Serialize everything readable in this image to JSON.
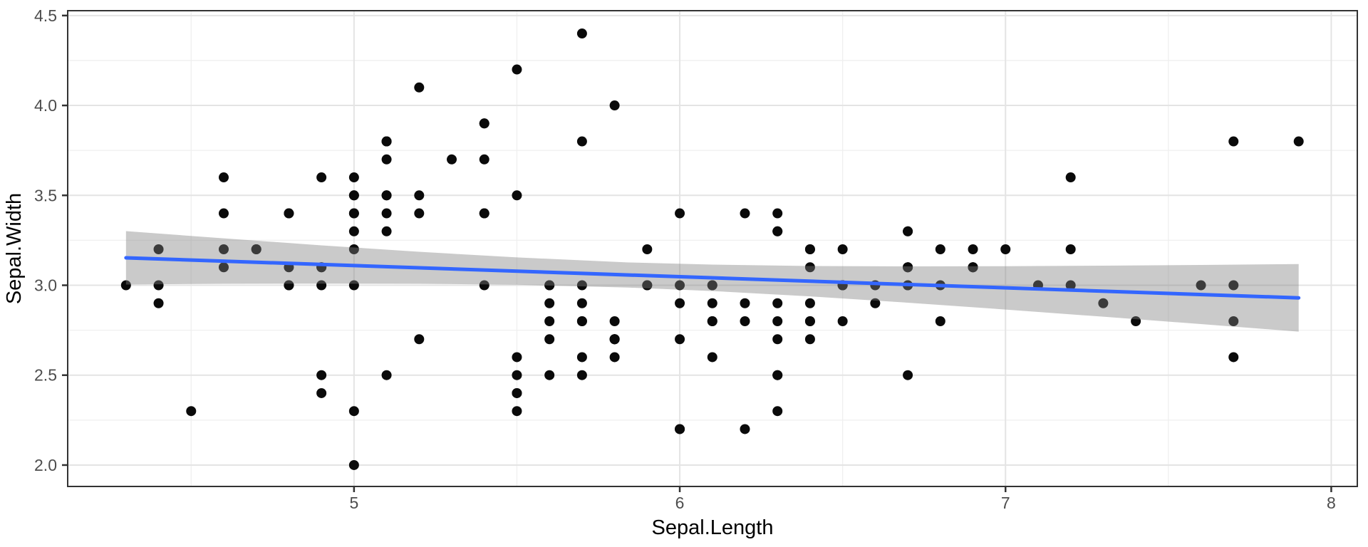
{
  "chart_data": {
    "type": "scatter",
    "title": "",
    "xlabel": "Sepal.Length",
    "ylabel": "Sepal.Width",
    "xlim": [
      4.121,
      8.08
    ],
    "ylim": [
      1.881,
      4.527
    ],
    "grid": "on",
    "legend": "none",
    "x_ticks": [
      {
        "v": 5,
        "label": "5"
      },
      {
        "v": 6,
        "label": "6"
      },
      {
        "v": 7,
        "label": "7"
      },
      {
        "v": 8,
        "label": "8"
      }
    ],
    "y_ticks": [
      {
        "v": 2.0,
        "label": "2.0"
      },
      {
        "v": 2.5,
        "label": "2.5"
      },
      {
        "v": 3.0,
        "label": "3.0"
      },
      {
        "v": 3.5,
        "label": "3.5"
      },
      {
        "v": 4.0,
        "label": "4.0"
      },
      {
        "v": 4.5,
        "label": "4.5"
      }
    ],
    "x_minor_ticks": [
      4.5,
      5.5,
      6.5,
      7.5
    ],
    "y_minor_ticks": [
      2.25,
      2.75,
      3.25,
      3.75,
      4.25
    ],
    "points": [
      [
        5.1,
        3.5
      ],
      [
        4.9,
        3.0
      ],
      [
        4.7,
        3.2
      ],
      [
        4.6,
        3.1
      ],
      [
        5.0,
        3.6
      ],
      [
        5.4,
        3.9
      ],
      [
        4.6,
        3.4
      ],
      [
        5.0,
        3.4
      ],
      [
        4.4,
        2.9
      ],
      [
        4.9,
        3.1
      ],
      [
        5.4,
        3.7
      ],
      [
        4.8,
        3.4
      ],
      [
        4.8,
        3.0
      ],
      [
        4.3,
        3.0
      ],
      [
        5.8,
        4.0
      ],
      [
        5.7,
        4.4
      ],
      [
        5.4,
        3.9
      ],
      [
        5.1,
        3.5
      ],
      [
        5.7,
        3.8
      ],
      [
        5.1,
        3.8
      ],
      [
        5.4,
        3.4
      ],
      [
        5.1,
        3.7
      ],
      [
        4.6,
        3.6
      ],
      [
        5.1,
        3.3
      ],
      [
        4.8,
        3.4
      ],
      [
        5.0,
        3.0
      ],
      [
        5.0,
        3.4
      ],
      [
        5.2,
        3.5
      ],
      [
        5.2,
        3.4
      ],
      [
        4.7,
        3.2
      ],
      [
        4.8,
        3.1
      ],
      [
        5.4,
        3.4
      ],
      [
        5.2,
        4.1
      ],
      [
        5.5,
        4.2
      ],
      [
        4.9,
        3.1
      ],
      [
        5.0,
        3.2
      ],
      [
        5.5,
        3.5
      ],
      [
        4.9,
        3.6
      ],
      [
        4.4,
        3.0
      ],
      [
        5.1,
        3.4
      ],
      [
        5.0,
        3.5
      ],
      [
        4.5,
        2.3
      ],
      [
        4.4,
        3.2
      ],
      [
        5.0,
        3.5
      ],
      [
        5.1,
        3.8
      ],
      [
        4.8,
        3.0
      ],
      [
        5.1,
        3.8
      ],
      [
        4.6,
        3.2
      ],
      [
        5.3,
        3.7
      ],
      [
        5.0,
        3.3
      ],
      [
        7.0,
        3.2
      ],
      [
        6.4,
        3.2
      ],
      [
        6.9,
        3.1
      ],
      [
        5.5,
        2.3
      ],
      [
        6.5,
        2.8
      ],
      [
        5.7,
        2.8
      ],
      [
        6.3,
        3.3
      ],
      [
        4.9,
        2.4
      ],
      [
        6.6,
        2.9
      ],
      [
        5.2,
        2.7
      ],
      [
        5.0,
        2.0
      ],
      [
        5.9,
        3.0
      ],
      [
        6.0,
        2.2
      ],
      [
        6.1,
        2.9
      ],
      [
        5.6,
        2.9
      ],
      [
        6.7,
        3.1
      ],
      [
        5.6,
        3.0
      ],
      [
        5.8,
        2.7
      ],
      [
        6.2,
        2.2
      ],
      [
        5.6,
        2.5
      ],
      [
        5.9,
        3.2
      ],
      [
        6.1,
        2.8
      ],
      [
        6.3,
        2.5
      ],
      [
        6.1,
        2.8
      ],
      [
        6.4,
        2.9
      ],
      [
        6.6,
        3.0
      ],
      [
        6.8,
        2.8
      ],
      [
        6.7,
        3.0
      ],
      [
        6.0,
        2.9
      ],
      [
        5.7,
        2.6
      ],
      [
        5.5,
        2.4
      ],
      [
        5.5,
        2.4
      ],
      [
        5.8,
        2.7
      ],
      [
        6.0,
        2.7
      ],
      [
        5.4,
        3.0
      ],
      [
        6.0,
        3.4
      ],
      [
        6.7,
        3.1
      ],
      [
        6.3,
        2.3
      ],
      [
        5.6,
        3.0
      ],
      [
        5.5,
        2.5
      ],
      [
        5.5,
        2.6
      ],
      [
        6.1,
        3.0
      ],
      [
        5.8,
        2.6
      ],
      [
        5.0,
        2.3
      ],
      [
        5.6,
        2.7
      ],
      [
        5.7,
        3.0
      ],
      [
        5.7,
        2.9
      ],
      [
        6.2,
        2.9
      ],
      [
        5.1,
        2.5
      ],
      [
        5.7,
        2.8
      ],
      [
        6.3,
        3.3
      ],
      [
        5.8,
        2.7
      ],
      [
        7.1,
        3.0
      ],
      [
        6.3,
        2.9
      ],
      [
        6.5,
        3.0
      ],
      [
        7.6,
        3.0
      ],
      [
        4.9,
        2.5
      ],
      [
        7.3,
        2.9
      ],
      [
        6.7,
        2.5
      ],
      [
        7.2,
        3.6
      ],
      [
        6.5,
        3.2
      ],
      [
        6.4,
        2.7
      ],
      [
        6.8,
        3.0
      ],
      [
        5.7,
        2.5
      ],
      [
        5.8,
        2.8
      ],
      [
        6.4,
        3.2
      ],
      [
        6.5,
        3.0
      ],
      [
        7.7,
        3.8
      ],
      [
        7.7,
        2.6
      ],
      [
        6.0,
        2.2
      ],
      [
        6.9,
        3.2
      ],
      [
        5.6,
        2.8
      ],
      [
        7.7,
        2.8
      ],
      [
        6.3,
        2.7
      ],
      [
        6.7,
        3.3
      ],
      [
        7.2,
        3.2
      ],
      [
        6.2,
        2.8
      ],
      [
        6.1,
        3.0
      ],
      [
        6.4,
        2.8
      ],
      [
        7.2,
        3.0
      ],
      [
        7.4,
        2.8
      ],
      [
        7.9,
        3.8
      ],
      [
        6.4,
        2.8
      ],
      [
        6.3,
        2.8
      ],
      [
        6.1,
        2.6
      ],
      [
        7.7,
        3.0
      ],
      [
        6.3,
        3.4
      ],
      [
        6.4,
        3.1
      ],
      [
        6.0,
        3.0
      ],
      [
        6.9,
        3.1
      ],
      [
        6.7,
        3.1
      ],
      [
        6.9,
        3.1
      ],
      [
        5.8,
        2.7
      ],
      [
        6.8,
        3.2
      ],
      [
        6.7,
        3.3
      ],
      [
        6.7,
        3.0
      ],
      [
        6.3,
        2.5
      ],
      [
        6.5,
        3.0
      ],
      [
        6.2,
        3.4
      ],
      [
        5.9,
        3.0
      ]
    ],
    "smooth": {
      "method": "lm",
      "slope": -0.0619,
      "intercept": 3.4189,
      "x_range": [
        4.3,
        7.9
      ],
      "ci_band": [
        {
          "x": 4.3,
          "lo": 3.004,
          "hi": 3.301
        },
        {
          "x": 4.6,
          "lo": 3.008,
          "hi": 3.261
        },
        {
          "x": 4.9,
          "lo": 3.009,
          "hi": 3.222
        },
        {
          "x": 5.2,
          "lo": 3.008,
          "hi": 3.186
        },
        {
          "x": 5.5,
          "lo": 3.003,
          "hi": 3.155
        },
        {
          "x": 5.843,
          "lo": 2.987,
          "hi": 3.127
        },
        {
          "x": 6.1,
          "lo": 2.968,
          "hi": 3.115
        },
        {
          "x": 6.4,
          "lo": 2.938,
          "hi": 3.107
        },
        {
          "x": 6.7,
          "lo": 2.903,
          "hi": 3.105
        },
        {
          "x": 7.0,
          "lo": 2.865,
          "hi": 3.106
        },
        {
          "x": 7.3,
          "lo": 2.825,
          "hi": 3.109
        },
        {
          "x": 7.6,
          "lo": 2.784,
          "hi": 3.113
        },
        {
          "x": 7.9,
          "lo": 2.742,
          "hi": 3.118
        }
      ]
    },
    "colors": {
      "point": "#0A0A0A",
      "smooth_line": "#3366FF",
      "band_fill": "#808080",
      "band_opacity": 0.42,
      "grid_major": "#E4E4E4",
      "grid_minor": "#EFEFEF",
      "panel_border": "#333333",
      "tick_mark": "#333333",
      "tick_label": "#4D4D4D",
      "axis_title": "#000000",
      "background": "#FFFFFF"
    }
  }
}
